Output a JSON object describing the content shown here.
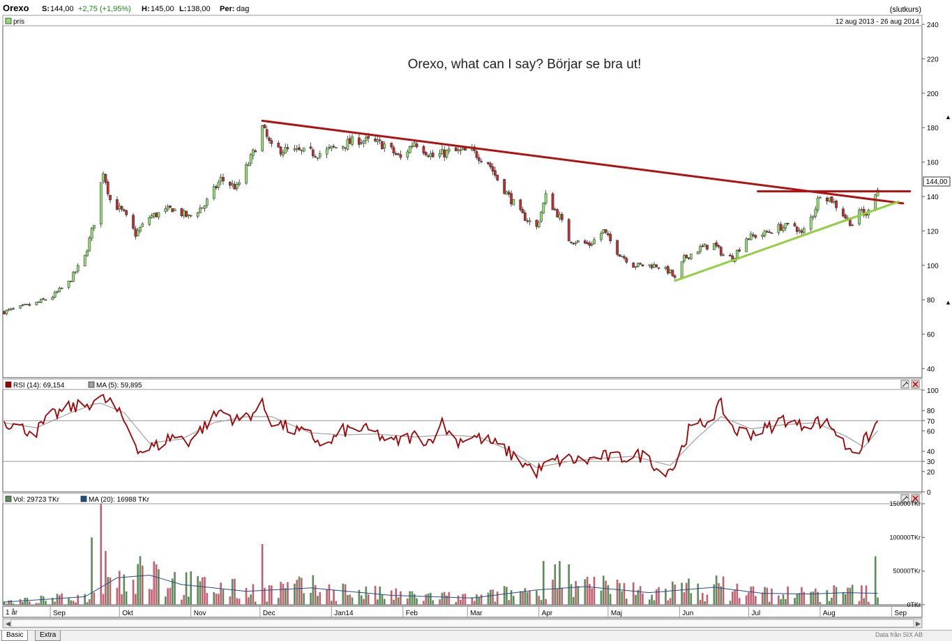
{
  "header": {
    "ticker": "Orexo",
    "last_label": "S:",
    "last": "144,00",
    "change": "+2,75 (+1,95%)",
    "high_label": "H:",
    "high": "145,00",
    "low_label": "L:",
    "low": "138,00",
    "period_label": "Per:",
    "period": "dag",
    "mode": "(slutkurs)"
  },
  "price_panel": {
    "legend": "pris",
    "date_range": "12 aug 2013 - 26 aug 2014",
    "annotation": "Orexo, what can I say? Börjar se bra ut!",
    "last_badge": "144,00"
  },
  "rsi_panel": {
    "legend_rsi": "RSI (14): 69,154",
    "legend_ma": "MA (5): 59,895"
  },
  "volume_panel": {
    "legend_vol": "Vol: 29723 TKr",
    "legend_ma": "MA (20): 16988 TKr"
  },
  "x_axis": {
    "range_label": "1 år"
  },
  "tabs": [
    "Basic",
    "Extra"
  ],
  "source": "Data från SIX AB",
  "colors": {
    "up": "#90e070",
    "down": "#c03030",
    "trend_red": "#b01010",
    "trend_green": "#90d040",
    "rsi": "#a00000",
    "rsi_ma": "#a0a0a0",
    "vol_up": "#5e8a5a",
    "vol_down": "#c06070",
    "vol_ma": "#1f4e8a"
  },
  "chart_data": [
    {
      "type": "candlestick",
      "title": "",
      "ylim": [
        40,
        240
      ],
      "yticks": [
        40,
        60,
        80,
        100,
        120,
        140,
        160,
        180,
        200,
        220,
        240
      ],
      "x_months": [
        "Sep",
        "Okt",
        "Nov",
        "Dec",
        "Jan14",
        "Feb",
        "Mar",
        "Apr",
        "Maj",
        "Jun",
        "Jul",
        "Aug",
        "Sep"
      ],
      "series": [
        {
          "name": "pris",
          "anchors": [
            [
              "2013-08-12",
              73
            ],
            [
              "2013-08-26",
              78
            ],
            [
              "2013-09-02",
              82
            ],
            [
              "2013-09-09",
              90
            ],
            [
              "2013-09-16",
              105
            ],
            [
              "2013-09-20",
              125
            ],
            [
              "2013-09-24",
              155
            ],
            [
              "2013-09-27",
              138
            ],
            [
              "2013-10-03",
              130
            ],
            [
              "2013-10-08",
              118
            ],
            [
              "2013-10-14",
              128
            ],
            [
              "2013-10-24",
              133
            ],
            [
              "2013-10-31",
              128
            ],
            [
              "2013-11-07",
              135
            ],
            [
              "2013-11-14",
              150
            ],
            [
              "2013-11-21",
              145
            ],
            [
              "2013-11-28",
              165
            ],
            [
              "2013-12-02",
              180
            ],
            [
              "2013-12-06",
              168
            ],
            [
              "2013-12-16",
              166
            ],
            [
              "2013-12-27",
              165
            ],
            [
              "2014-01-06",
              170
            ],
            [
              "2014-01-13",
              173
            ],
            [
              "2014-01-24",
              170
            ],
            [
              "2014-01-31",
              162
            ],
            [
              "2014-02-06",
              172
            ],
            [
              "2014-02-14",
              163
            ],
            [
              "2014-02-21",
              166
            ],
            [
              "2014-03-03",
              166
            ],
            [
              "2014-03-10",
              160
            ],
            [
              "2014-03-14",
              150
            ],
            [
              "2014-03-19",
              140
            ],
            [
              "2014-03-24",
              130
            ],
            [
              "2014-03-31",
              122
            ],
            [
              "2014-04-04",
              140
            ],
            [
              "2014-04-10",
              128
            ],
            [
              "2014-04-14",
              115
            ],
            [
              "2014-04-23",
              112
            ],
            [
              "2014-04-29",
              120
            ],
            [
              "2014-05-05",
              108
            ],
            [
              "2014-05-12",
              100
            ],
            [
              "2014-05-22",
              100
            ],
            [
              "2014-05-28",
              96
            ],
            [
              "2014-05-30",
              92
            ],
            [
              "2014-06-03",
              104
            ],
            [
              "2014-06-10",
              110
            ],
            [
              "2014-06-16",
              112
            ],
            [
              "2014-06-20",
              106
            ],
            [
              "2014-06-24",
              104
            ],
            [
              "2014-06-30",
              116
            ],
            [
              "2014-07-07",
              118
            ],
            [
              "2014-07-14",
              122
            ],
            [
              "2014-07-21",
              123
            ],
            [
              "2014-07-24",
              118
            ],
            [
              "2014-07-29",
              130
            ],
            [
              "2014-08-01",
              142
            ],
            [
              "2014-08-06",
              138
            ],
            [
              "2014-08-12",
              128
            ],
            [
              "2014-08-15",
              124
            ],
            [
              "2014-08-19",
              132
            ],
            [
              "2014-08-21",
              128
            ],
            [
              "2014-08-23",
              140
            ],
            [
              "2014-08-26",
              144
            ]
          ]
        }
      ],
      "trendlines": [
        {
          "name": "resistance",
          "from": [
            "2013-12-02",
            184
          ],
          "to": [
            "2014-09-06",
            136
          ]
        },
        {
          "name": "horizontal",
          "from": [
            "2014-07-05",
            143
          ],
          "to": [
            "2014-09-09",
            143
          ]
        },
        {
          "name": "support",
          "from": [
            "2014-05-30",
            91
          ],
          "to": [
            "2014-09-04",
            137
          ]
        }
      ]
    },
    {
      "type": "line",
      "title": "",
      "ylim": [
        0,
        100
      ],
      "yticks": [
        0,
        20,
        30,
        40,
        60,
        70,
        80,
        100
      ],
      "reference_lines": [
        30,
        70
      ],
      "series": [
        {
          "name": "RSI (14)",
          "anchors": [
            [
              "2013-08-12",
              70
            ],
            [
              "2013-08-20",
              62
            ],
            [
              "2013-08-26",
              60
            ],
            [
              "2013-09-02",
              75
            ],
            [
              "2013-09-09",
              82
            ],
            [
              "2013-09-16",
              85
            ],
            [
              "2013-09-22",
              92
            ],
            [
              "2013-09-27",
              88
            ],
            [
              "2013-10-03",
              70
            ],
            [
              "2013-10-10",
              40
            ],
            [
              "2013-10-17",
              45
            ],
            [
              "2013-10-24",
              55
            ],
            [
              "2013-10-31",
              50
            ],
            [
              "2013-11-07",
              65
            ],
            [
              "2013-11-14",
              80
            ],
            [
              "2013-11-21",
              70
            ],
            [
              "2013-11-28",
              78
            ],
            [
              "2013-12-02",
              85
            ],
            [
              "2013-12-06",
              70
            ],
            [
              "2013-12-16",
              60
            ],
            [
              "2013-12-23",
              55
            ],
            [
              "2013-12-30",
              45
            ],
            [
              "2014-01-06",
              60
            ],
            [
              "2014-01-13",
              62
            ],
            [
              "2014-01-20",
              58
            ],
            [
              "2014-01-27",
              48
            ],
            [
              "2014-02-06",
              55
            ],
            [
              "2014-02-13",
              50
            ],
            [
              "2014-02-17",
              70
            ],
            [
              "2014-02-24",
              50
            ],
            [
              "2014-03-03",
              55
            ],
            [
              "2014-03-10",
              50
            ],
            [
              "2014-03-17",
              42
            ],
            [
              "2014-03-24",
              30
            ],
            [
              "2014-03-31",
              20
            ],
            [
              "2014-04-07",
              30
            ],
            [
              "2014-04-14",
              32
            ],
            [
              "2014-04-21",
              30
            ],
            [
              "2014-04-28",
              35
            ],
            [
              "2014-05-05",
              33
            ],
            [
              "2014-05-12",
              36
            ],
            [
              "2014-05-19",
              35
            ],
            [
              "2014-05-23",
              20
            ],
            [
              "2014-05-30",
              25
            ],
            [
              "2014-06-05",
              60
            ],
            [
              "2014-06-12",
              68
            ],
            [
              "2014-06-19",
              85
            ],
            [
              "2014-06-25",
              60
            ],
            [
              "2014-07-02",
              58
            ],
            [
              "2014-07-09",
              62
            ],
            [
              "2014-07-16",
              72
            ],
            [
              "2014-07-23",
              65
            ],
            [
              "2014-07-30",
              70
            ],
            [
              "2014-08-06",
              65
            ],
            [
              "2014-08-12",
              45
            ],
            [
              "2014-08-18",
              42
            ],
            [
              "2014-08-22",
              55
            ],
            [
              "2014-08-26",
              69
            ]
          ]
        },
        {
          "name": "MA (5)",
          "anchors": [
            [
              "2013-08-12",
              68
            ],
            [
              "2013-08-26",
              63
            ],
            [
              "2013-09-09",
              77
            ],
            [
              "2013-09-22",
              88
            ],
            [
              "2013-10-03",
              78
            ],
            [
              "2013-10-14",
              48
            ],
            [
              "2013-10-28",
              52
            ],
            [
              "2013-11-11",
              68
            ],
            [
              "2013-11-25",
              74
            ],
            [
              "2013-12-06",
              74
            ],
            [
              "2013-12-23",
              58
            ],
            [
              "2014-01-06",
              56
            ],
            [
              "2014-01-20",
              57
            ],
            [
              "2014-02-06",
              54
            ],
            [
              "2014-02-20",
              56
            ],
            [
              "2014-03-06",
              54
            ],
            [
              "2014-03-20",
              40
            ],
            [
              "2014-03-31",
              24
            ],
            [
              "2014-04-14",
              30
            ],
            [
              "2014-04-28",
              33
            ],
            [
              "2014-05-12",
              35
            ],
            [
              "2014-05-28",
              26
            ],
            [
              "2014-06-08",
              52
            ],
            [
              "2014-06-19",
              74
            ],
            [
              "2014-07-02",
              62
            ],
            [
              "2014-07-16",
              66
            ],
            [
              "2014-07-30",
              68
            ],
            [
              "2014-08-12",
              55
            ],
            [
              "2014-08-20",
              44
            ],
            [
              "2014-08-26",
              60
            ]
          ]
        }
      ]
    },
    {
      "type": "bar",
      "title": "",
      "ylim": [
        0,
        150000
      ],
      "yticks": [
        0,
        50000,
        100000,
        150000
      ],
      "ytick_labels": [
        "0TKr",
        "50000TKr",
        "100000TKr",
        "150000TKr"
      ],
      "series": [
        {
          "name": "Vol",
          "spikes": [
            [
              "2013-09-19",
              100000
            ],
            [
              "2013-09-23",
              150000
            ],
            [
              "2013-09-25",
              80000
            ],
            [
              "2013-10-17",
              60000
            ],
            [
              "2013-12-02",
              90000
            ],
            [
              "2014-04-03",
              65000
            ],
            [
              "2014-04-08",
              60000
            ],
            [
              "2014-04-10",
              65000
            ],
            [
              "2014-04-14",
              60000
            ],
            [
              "2014-08-25",
              72000
            ]
          ]
        },
        {
          "name": "MA (20)",
          "anchors": [
            [
              "2013-08-12",
              4000
            ],
            [
              "2013-09-16",
              12000
            ],
            [
              "2013-09-30",
              40000
            ],
            [
              "2013-10-14",
              44000
            ],
            [
              "2013-10-28",
              30000
            ],
            [
              "2013-11-25",
              20000
            ],
            [
              "2013-12-23",
              25000
            ],
            [
              "2014-01-27",
              14000
            ],
            [
              "2014-03-03",
              10000
            ],
            [
              "2014-03-31",
              22000
            ],
            [
              "2014-04-21",
              27000
            ],
            [
              "2014-05-19",
              18000
            ],
            [
              "2014-06-16",
              26000
            ],
            [
              "2014-07-07",
              17000
            ],
            [
              "2014-07-28",
              16000
            ],
            [
              "2014-08-12",
              18000
            ],
            [
              "2014-08-26",
              16988
            ]
          ]
        }
      ]
    }
  ]
}
